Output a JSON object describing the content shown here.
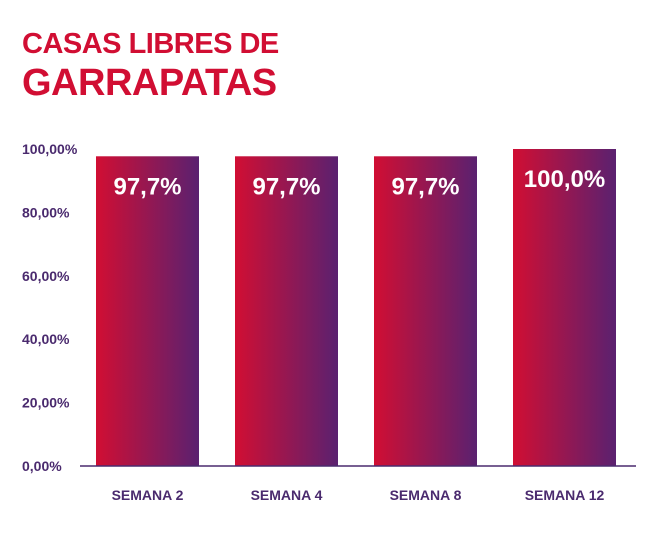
{
  "title": {
    "line1": "CASAS LIBRES DE",
    "line2": "GARRAPATAS"
  },
  "colors": {
    "title": "#d10e33",
    "bar_start": "#d10e33",
    "bar_end": "#5a2170",
    "axis": "#4a2a6e"
  },
  "chart_data": {
    "type": "bar",
    "title": "CASAS LIBRES DE GARRAPATAS",
    "categories": [
      "SEMANA 2",
      "SEMANA 4",
      "SEMANA 8",
      "SEMANA 12"
    ],
    "values": [
      97.7,
      97.7,
      97.7,
      100.0
    ],
    "data_labels": [
      "97,7%",
      "97,7%",
      "97,7%",
      "100,0%"
    ],
    "yticks": [
      "0,00%",
      "20,00%",
      "40,00%",
      "60,00%",
      "80,00%",
      "100,00%"
    ],
    "ylim": [
      0,
      100
    ],
    "xlabel": "",
    "ylabel": "",
    "grid": false
  }
}
